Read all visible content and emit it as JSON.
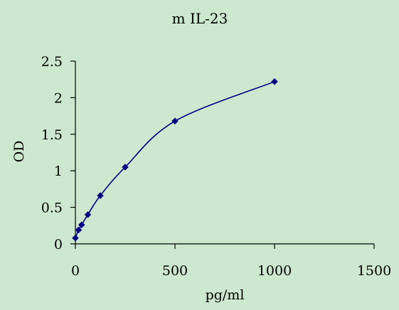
{
  "chart_data": {
    "type": "scatter",
    "title": "m IL-23",
    "xlabel": "pg/ml",
    "ylabel": "OD",
    "xlim": [
      0,
      1500
    ],
    "ylim": [
      0,
      2.5
    ],
    "x_ticks": [
      {
        "value": 0,
        "label": "0"
      },
      {
        "value": 500,
        "label": "500"
      },
      {
        "value": 1000,
        "label": "1000"
      },
      {
        "value": 1500,
        "label": "1500"
      }
    ],
    "y_ticks": [
      {
        "value": 0,
        "label": "0"
      },
      {
        "value": 0.5,
        "label": "0.5"
      },
      {
        "value": 1,
        "label": "1"
      },
      {
        "value": 1.5,
        "label": "1.5"
      },
      {
        "value": 2,
        "label": "2"
      },
      {
        "value": 2.5,
        "label": "2.5"
      }
    ],
    "grid": false,
    "smooth_line": true,
    "marker": "diamond",
    "color": "#000080",
    "series": [
      {
        "x": [
          0,
          15.6,
          31.25,
          62.5,
          125,
          250,
          500,
          1000
        ],
        "y": [
          0.08,
          0.19,
          0.26,
          0.4,
          0.66,
          1.05,
          1.68,
          2.22
        ]
      }
    ]
  }
}
